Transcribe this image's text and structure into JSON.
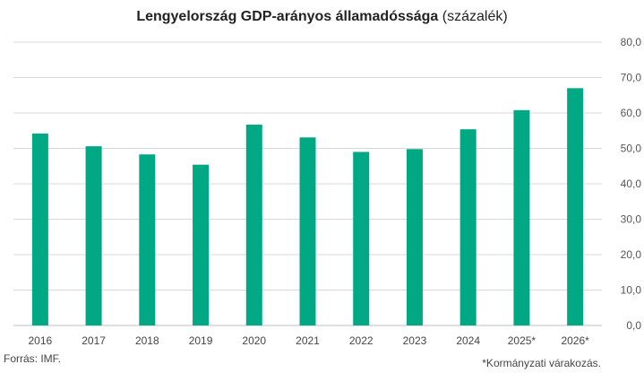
{
  "chart_data": {
    "type": "bar",
    "title": "Lengyelország GDP-arányos államadóssága",
    "subtitle": "(százalék)",
    "categories": [
      "2016",
      "2017",
      "2018",
      "2019",
      "2020",
      "2021",
      "2022",
      "2023",
      "2024",
      "2025*",
      "2026*"
    ],
    "values": [
      54.2,
      50.6,
      48.3,
      45.4,
      56.7,
      53.1,
      49.0,
      49.8,
      55.4,
      60.8,
      67.0
    ],
    "ylim": [
      0,
      80
    ],
    "yticks": [
      "0,0",
      "10,0",
      "20,0",
      "30,0",
      "40,0",
      "50,0",
      "60,0",
      "70,0",
      "80,0"
    ],
    "grid": true,
    "bar_color": "#00A884",
    "grid_color": "#d9d9d9",
    "source": "Forrás:  IMF.",
    "note": "*Kormányzati  várakozás."
  }
}
